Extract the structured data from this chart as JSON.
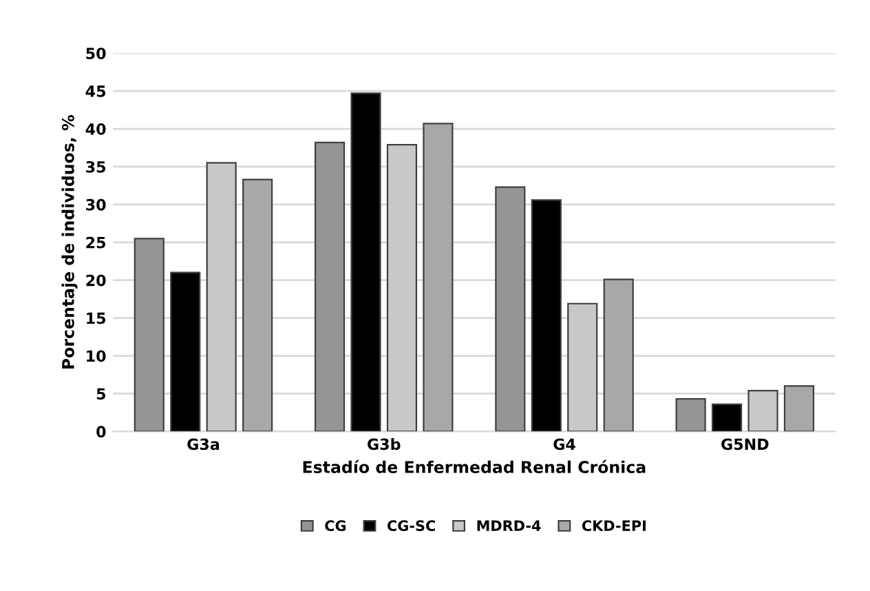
{
  "chart_data": {
    "type": "bar",
    "xlabel": "Estadío de Enfermedad Renal Crónica",
    "ylabel": "Porcentaje de individuos, %",
    "categories": [
      "G3a",
      "G3b",
      "G4",
      "G5ND"
    ],
    "series": [
      {
        "name": "CG",
        "color": "#959595",
        "values": [
          25.5,
          38.2,
          32.3,
          4.3
        ]
      },
      {
        "name": "CG-SC",
        "color": "#000000",
        "values": [
          21.0,
          44.7,
          30.6,
          3.6
        ]
      },
      {
        "name": "MDRD-4",
        "color": "#c8c8c8",
        "values": [
          35.5,
          37.9,
          16.9,
          5.4
        ]
      },
      {
        "name": "CKD-EPI",
        "color": "#a8a8a8",
        "values": [
          33.3,
          40.7,
          20.1,
          6.0
        ]
      }
    ],
    "ylim": [
      0,
      50
    ],
    "yticks": [
      0,
      5,
      10,
      15,
      20,
      25,
      30,
      35,
      40,
      45,
      50
    ],
    "grid": "y",
    "legend": "bottom"
  }
}
